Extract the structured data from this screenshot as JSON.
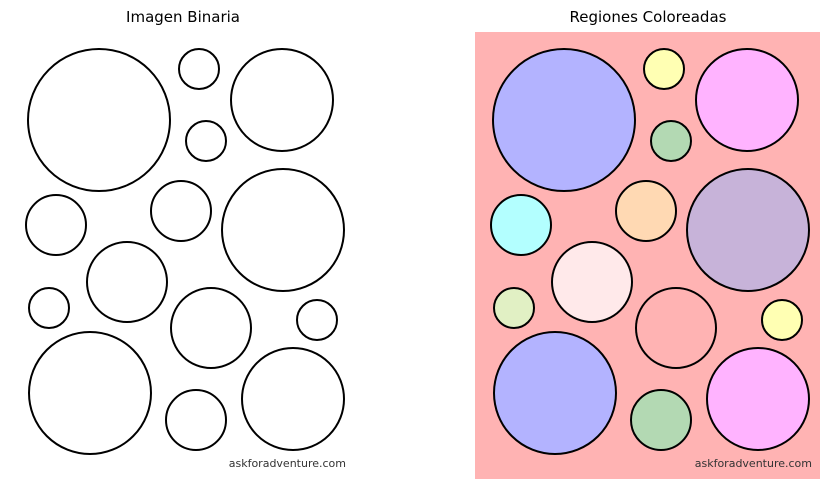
{
  "panels": {
    "left_title": "Imagen Binaria",
    "right_title": "Regiones Coloreadas"
  },
  "watermark": "askforadventure.com",
  "colors": {
    "background_region": "#ffb3b3",
    "outline": "#000000",
    "left_fill": "#ffffff"
  },
  "regions": [
    {
      "id": "r1",
      "fill": "#b3b3ff"
    },
    {
      "id": "r2",
      "fill": "#ffffb3"
    },
    {
      "id": "r3",
      "fill": "#ffb3ff"
    },
    {
      "id": "r4",
      "fill": "#b3d9b3"
    },
    {
      "id": "r5",
      "fill": "#b3ffff"
    },
    {
      "id": "r6",
      "fill": "#ffd9b3"
    },
    {
      "id": "r7",
      "fill": "#c7b3d9"
    },
    {
      "id": "r8",
      "fill": "#ffe9ea"
    },
    {
      "id": "r9",
      "fill": "#e1f0c4"
    },
    {
      "id": "r10",
      "fill": "#ffb3b3"
    },
    {
      "id": "r11",
      "fill": "#b3b3ff"
    },
    {
      "id": "r12",
      "fill": "#ffffb3"
    },
    {
      "id": "r13",
      "fill": "#b3d9b3"
    },
    {
      "id": "r14",
      "fill": "#ffb3ff"
    }
  ]
}
